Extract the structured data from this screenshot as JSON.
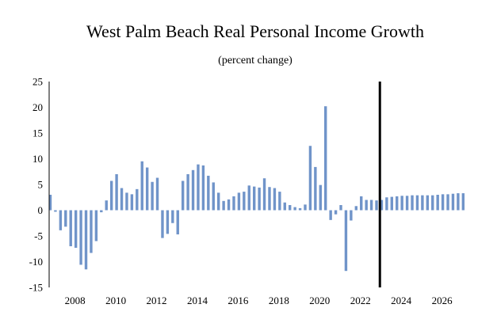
{
  "chart_data": {
    "type": "bar",
    "title": "West Palm Beach Real Personal Income Growth",
    "subtitle": "(percent change)",
    "xlabel": "",
    "ylabel": "",
    "ylim": [
      -15,
      25
    ],
    "yticks": [
      25,
      20,
      15,
      10,
      5,
      0,
      -5,
      -10,
      -15
    ],
    "xticks": [
      "2008",
      "2010",
      "2012",
      "2014",
      "2016",
      "2018",
      "2020",
      "2022",
      "2024",
      "2026"
    ],
    "x_start": "2007Q2",
    "frequency": "quarterly",
    "forecast_start": "2023Q3",
    "bar_color": "#7094c9",
    "divider_color": "#000000",
    "grid": false,
    "values": [
      3.0,
      -0.3,
      -3.9,
      -3.2,
      -7.0,
      -7.3,
      -10.6,
      -11.5,
      -8.3,
      -6.0,
      -0.4,
      1.9,
      5.7,
      7.0,
      4.3,
      3.4,
      3.1,
      4.1,
      9.5,
      8.3,
      5.5,
      6.3,
      -5.4,
      -4.6,
      -2.5,
      -4.7,
      5.7,
      7.0,
      7.8,
      8.9,
      8.7,
      6.7,
      5.4,
      3.4,
      1.8,
      2.1,
      2.7,
      3.4,
      3.6,
      4.8,
      4.6,
      4.4,
      6.2,
      4.5,
      4.3,
      3.6,
      1.5,
      1.0,
      0.6,
      0.4,
      1.1,
      12.5,
      8.4,
      4.9,
      20.2,
      -1.9,
      -0.8,
      1.0,
      -11.8,
      -2.0,
      0.8,
      2.7,
      2.0,
      2.0,
      1.9,
      2.0,
      2.5,
      2.6,
      2.7,
      2.8,
      2.8,
      2.9,
      2.9,
      2.9,
      2.9,
      2.9,
      3.0,
      3.1,
      3.1,
      3.2,
      3.3,
      3.3
    ]
  }
}
